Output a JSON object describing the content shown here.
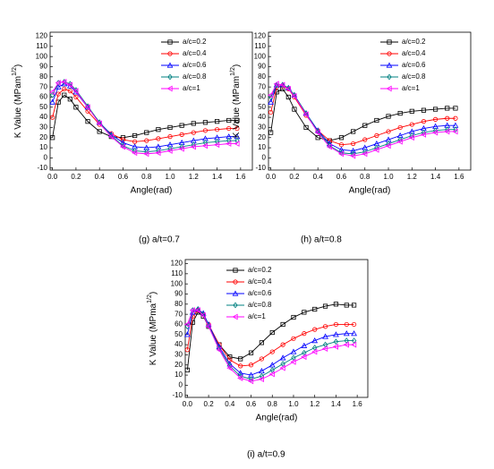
{
  "chart_data": [
    {
      "type": "line",
      "caption": "(g) a/t=0.7",
      "xlabel": "Angle(rad)",
      "ylabel": {
        "text": "K Value (MPam",
        "sup": "1/2",
        "close": ")"
      },
      "xlim": [
        -0.02,
        1.7
      ],
      "ylim": [
        -12,
        124
      ],
      "xticks": [
        {
          "value": 0,
          "label": "0.0"
        },
        0.2,
        0.4,
        0.6,
        0.8,
        {
          "value": 1,
          "label": "1.0"
        },
        1.2,
        1.4,
        1.6
      ],
      "yticks": [
        -10,
        0,
        10,
        20,
        30,
        40,
        50,
        60,
        70,
        80,
        90,
        100,
        110,
        120
      ],
      "x": [
        0,
        0.05,
        0.1,
        0.15,
        0.2,
        0.3,
        0.4,
        0.5,
        0.6,
        0.7,
        0.8,
        0.9,
        1.0,
        1.1,
        1.2,
        1.3,
        1.4,
        1.5,
        1.57
      ],
      "series": [
        {
          "name": "a/c=0.2",
          "color": "#000000",
          "marker": "square",
          "values": [
            20,
            55,
            62,
            58,
            50,
            36,
            26,
            21,
            20,
            22,
            25,
            28,
            30,
            32,
            34,
            35,
            36,
            37,
            37
          ]
        },
        {
          "name": "a/c=0.4",
          "color": "#ff0000",
          "marker": "circle",
          "values": [
            40,
            63,
            68,
            66,
            60,
            46,
            33,
            24,
            18,
            16,
            17,
            19,
            21,
            23,
            25,
            27,
            28,
            29,
            29
          ]
        },
        {
          "name": "a/c=0.6",
          "color": "#0000ff",
          "marker": "triangle",
          "values": [
            55,
            70,
            73,
            71,
            65,
            50,
            35,
            23,
            15,
            11,
            10,
            11,
            13,
            15,
            17,
            19,
            20,
            21,
            21
          ]
        },
        {
          "name": "a/c=0.8",
          "color": "#008080",
          "marker": "diamond",
          "values": [
            62,
            74,
            75,
            73,
            67,
            51,
            35,
            22,
            12,
            7,
            6,
            7,
            9,
            11,
            13,
            15,
            16,
            17,
            17
          ]
        },
        {
          "name": "a/c=1",
          "color": "#ff00ff",
          "marker": "left",
          "values": [
            65,
            74,
            75,
            72,
            66,
            50,
            34,
            21,
            11,
            5,
            4,
            5,
            7,
            9,
            11,
            12,
            13,
            14,
            14
          ]
        }
      ]
    },
    {
      "type": "line",
      "caption": "(h) a/t=0.8",
      "xlabel": "Angle(rad)",
      "ylabel": {
        "text": "K Value (MPam",
        "sup": "1/2",
        "close": ")"
      },
      "xlim": [
        -0.02,
        1.7
      ],
      "ylim": [
        -12,
        124
      ],
      "xticks": [
        {
          "value": 0,
          "label": "0.0"
        },
        0.2,
        0.4,
        0.6,
        0.8,
        {
          "value": 1,
          "label": "1.0"
        },
        1.2,
        1.4,
        1.6
      ],
      "yticks": [
        -10,
        0,
        10,
        20,
        30,
        40,
        50,
        60,
        70,
        80,
        90,
        100,
        110,
        120
      ],
      "x": [
        0,
        0.05,
        0.1,
        0.15,
        0.2,
        0.3,
        0.4,
        0.5,
        0.6,
        0.7,
        0.8,
        0.9,
        1.0,
        1.1,
        1.2,
        1.3,
        1.4,
        1.5,
        1.57
      ],
      "series": [
        {
          "name": "a/c=0.2",
          "color": "#000000",
          "marker": "square",
          "values": [
            25,
            65,
            68,
            60,
            48,
            30,
            20,
            17,
            20,
            26,
            32,
            37,
            41,
            44,
            46,
            47,
            48,
            49,
            49
          ]
        },
        {
          "name": "a/c=0.4",
          "color": "#ff0000",
          "marker": "circle",
          "values": [
            45,
            70,
            71,
            68,
            60,
            42,
            27,
            17,
            13,
            14,
            18,
            22,
            26,
            30,
            33,
            36,
            38,
            39,
            39
          ]
        },
        {
          "name": "a/c=0.6",
          "color": "#0000ff",
          "marker": "triangle",
          "values": [
            55,
            72,
            72,
            69,
            62,
            44,
            27,
            14,
            8,
            7,
            10,
            14,
            18,
            22,
            26,
            29,
            31,
            32,
            32
          ]
        },
        {
          "name": "a/c=0.8",
          "color": "#008080",
          "marker": "diamond",
          "values": [
            60,
            72,
            72,
            69,
            62,
            44,
            26,
            12,
            5,
            4,
            6,
            10,
            14,
            18,
            22,
            25,
            27,
            28,
            28
          ]
        },
        {
          "name": "a/c=1",
          "color": "#ff00ff",
          "marker": "left",
          "values": [
            62,
            73,
            72,
            68,
            61,
            43,
            25,
            11,
            4,
            2,
            4,
            8,
            12,
            16,
            20,
            23,
            25,
            26,
            26
          ]
        }
      ]
    },
    {
      "type": "line",
      "caption": "(i) a/t=0.9",
      "xlabel": "Angle(rad)",
      "ylabel": {
        "text": "K Value (MPma",
        "sup": "1/2",
        "close": ")"
      },
      "xlim": [
        -0.02,
        1.7
      ],
      "ylim": [
        -12,
        124
      ],
      "xticks": [
        {
          "value": 0,
          "label": "0.0"
        },
        0.2,
        0.4,
        0.6,
        0.8,
        {
          "value": 1,
          "label": "1.0"
        },
        1.2,
        1.4,
        1.6
      ],
      "yticks": [
        -10,
        0,
        10,
        20,
        30,
        40,
        50,
        60,
        70,
        80,
        90,
        100,
        110,
        120
      ],
      "x": [
        0,
        0.05,
        0.1,
        0.15,
        0.2,
        0.3,
        0.4,
        0.5,
        0.6,
        0.7,
        0.8,
        0.9,
        1.0,
        1.1,
        1.2,
        1.3,
        1.4,
        1.5,
        1.57
      ],
      "series": [
        {
          "name": "a/c=0.2",
          "color": "#000000",
          "marker": "square",
          "values": [
            15,
            62,
            72,
            68,
            58,
            40,
            28,
            26,
            32,
            42,
            52,
            60,
            67,
            72,
            75,
            78,
            80,
            79,
            79
          ]
        },
        {
          "name": "a/c=0.4",
          "color": "#ff0000",
          "marker": "circle",
          "values": [
            35,
            68,
            74,
            70,
            60,
            40,
            25,
            19,
            20,
            26,
            33,
            40,
            46,
            51,
            55,
            58,
            60,
            60,
            60
          ]
        },
        {
          "name": "a/c=0.6",
          "color": "#0000ff",
          "marker": "triangle",
          "values": [
            50,
            72,
            75,
            71,
            60,
            38,
            21,
            12,
            10,
            14,
            20,
            27,
            33,
            39,
            44,
            48,
            50,
            51,
            51
          ]
        },
        {
          "name": "a/c=0.8",
          "color": "#008080",
          "marker": "diamond",
          "values": [
            58,
            74,
            75,
            70,
            59,
            36,
            19,
            9,
            6,
            9,
            15,
            21,
            27,
            32,
            37,
            40,
            43,
            44,
            44
          ]
        },
        {
          "name": "a/c=1",
          "color": "#ff00ff",
          "marker": "left",
          "values": [
            60,
            74,
            74,
            69,
            58,
            35,
            17,
            7,
            4,
            6,
            11,
            17,
            23,
            28,
            33,
            36,
            38,
            40,
            40
          ]
        }
      ]
    }
  ]
}
